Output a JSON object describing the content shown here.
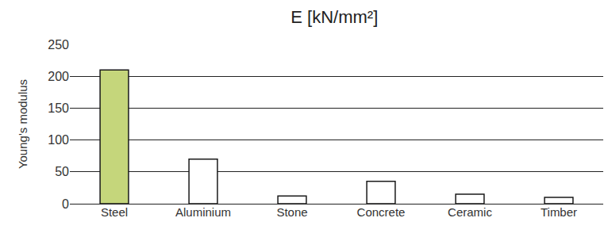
{
  "chart_data": {
    "type": "bar",
    "title": "E [kN/mm²]",
    "y_label": "Young's modulus",
    "categories": [
      "Steel",
      "Aluminium",
      "Stone",
      "Concrete",
      "Ceramic",
      "Timber"
    ],
    "values": [
      210,
      70,
      12,
      35,
      15,
      10
    ],
    "colors": [
      "#c5d67b",
      "#ffffff",
      "#ffffff",
      "#ffffff",
      "#ffffff",
      "#ffffff"
    ],
    "ylim": [
      0,
      250
    ],
    "yticks": [
      0,
      50,
      100,
      150,
      200,
      250
    ],
    "grid": true
  }
}
